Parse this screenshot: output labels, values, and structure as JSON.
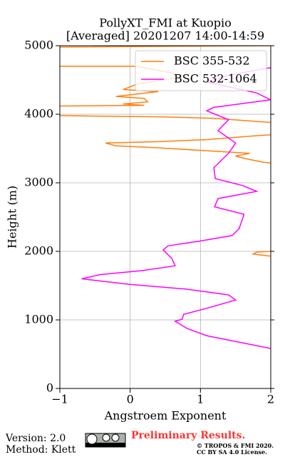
{
  "chart_data": {
    "type": "line",
    "title": "PollyXT_FMI at Kuopio",
    "subtitle": "[Averaged] 20201207 14:00-14:59",
    "x_label": "Angstroem Exponent",
    "y_label": "Height (m)",
    "xlim": [
      -1,
      2
    ],
    "xticks": [
      {
        "value": -1,
        "label": "−1"
      },
      0,
      1,
      2
    ],
    "ylim": [
      0,
      5000
    ],
    "yticks": [
      0,
      1000,
      2000,
      3000,
      4000,
      5000
    ],
    "grid": true,
    "legend": "upper right",
    "series": [
      {
        "name": "BSC 355-532",
        "color": "#ff7f0e",
        "heights": [
          4980,
          5000,
          null,
          4700,
          4700,
          4640,
          4560,
          4470,
          4440,
          4360,
          4330,
          4260,
          4230,
          4180,
          4150,
          4130,
          4120,
          null,
          3980,
          3960,
          3940,
          3880,
          null,
          3700,
          3680,
          3630,
          3600,
          3580,
          3540,
          3510,
          3460,
          3430,
          3390,
          3350,
          3300,
          3290,
          null,
          2000,
          1990,
          1960,
          1930
        ],
        "values": [
          -1,
          2,
          null,
          -1,
          0.1,
          0.4,
          0.8,
          0.3,
          0.1,
          -0.1,
          0.4,
          -0.2,
          0.2,
          0.25,
          -0.1,
          0.2,
          -1,
          null,
          -1,
          0.5,
          1.2,
          2.0,
          null,
          2.0,
          1.7,
          1.1,
          0.4,
          -0.35,
          -0.2,
          0.4,
          1.2,
          1.7,
          1.5,
          1.65,
          1.9,
          2.0,
          null,
          2.0,
          1.8,
          1.75,
          2.0
        ]
      },
      {
        "name": "BSC 532-1064",
        "color": "#ff00ff",
        "heights": [
          583,
          770,
          875,
          980,
          1010,
          1080,
          1170,
          1290,
          1365,
          1450,
          1520,
          1600,
          1660,
          1720,
          1790,
          1900,
          2020,
          2080,
          2150,
          2230,
          2330,
          2540,
          2650,
          2770,
          2875,
          2960,
          3060,
          3220,
          3430,
          3580,
          3760,
          3920,
          4050,
          4100,
          4210,
          4310,
          4470,
          4570,
          4680
        ],
        "values": [
          2.0,
          1.09,
          0.81,
          0.64,
          0.74,
          0.76,
          1.09,
          1.5,
          1.4,
          0.79,
          -0.02,
          -0.69,
          -0.43,
          0.18,
          0.64,
          0.59,
          0.47,
          0.54,
          0.99,
          1.45,
          1.55,
          1.62,
          1.2,
          1.25,
          1.8,
          1.6,
          1.21,
          1.19,
          1.4,
          1.5,
          1.25,
          1.4,
          1.09,
          1.19,
          2.0,
          1.8,
          1.09,
          1.4,
          2.0
        ]
      }
    ]
  },
  "footer": {
    "version": "Version: 2.0",
    "method": "Method: Klett",
    "status": "Preliminary Results.",
    "copyright": "© TROPOS & FMI 2020.",
    "license": "CC BY SA 4.0 License."
  }
}
